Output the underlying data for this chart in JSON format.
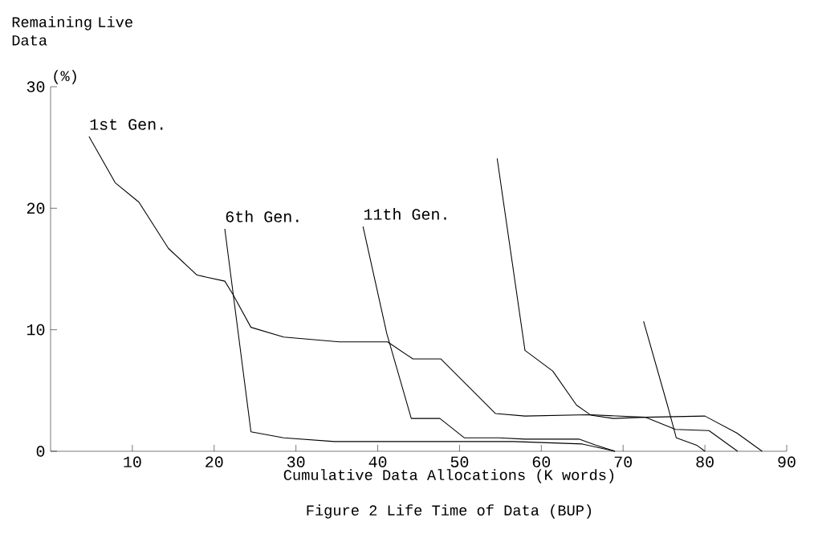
{
  "chart_data": {
    "type": "line",
    "title": "Figure 2 Life Time of Data (BUP)",
    "xlabel": "Cumulative Data Allocations (K words)",
    "ylabel": "Remaining Live Data",
    "annotations": [
      "(%)"
    ],
    "xlim": [
      0,
      90
    ],
    "ylim": [
      0,
      30
    ],
    "xticks": [
      10,
      20,
      30,
      40,
      50,
      60,
      70,
      80,
      90
    ],
    "yticks": [
      0,
      10,
      20,
      30
    ],
    "series": [
      {
        "name": "1st Gen.",
        "color": "#000000",
        "x": [
          4.7,
          7.9,
          10.8,
          14.4,
          17.9,
          21.3,
          22.3,
          24.5,
          28.5,
          35.3,
          41.2,
          44.3,
          47.7,
          54.4,
          58,
          65.7,
          68.8,
          72.7,
          80,
          83.9,
          87
        ],
        "values": [
          25.9,
          22.1,
          20.5,
          16.7,
          14.5,
          14.0,
          12.9,
          10.2,
          9.4,
          9.0,
          9.0,
          7.6,
          7.6,
          3.1,
          2.9,
          3.0,
          2.7,
          2.8,
          2.9,
          1.5,
          0
        ]
      },
      {
        "name": "6th Gen.",
        "color": "#000000",
        "x": [
          21.3,
          24.5,
          28.5,
          34.7,
          56.6,
          65,
          69
        ],
        "values": [
          18.3,
          1.6,
          1.1,
          0.8,
          0.8,
          0.6,
          0
        ]
      },
      {
        "name": "11th Gen.",
        "color": "#000000",
        "x": [
          38.2,
          41.1,
          44.1,
          47.6,
          50.6,
          54.8,
          58,
          64.6,
          66.7,
          69
        ],
        "values": [
          18.5,
          9.7,
          2.7,
          2.7,
          1.1,
          1.1,
          1.0,
          1.0,
          0.5,
          0
        ]
      },
      {
        "color": "#000000",
        "x": [
          54.6,
          58,
          61.4,
          64.3,
          66,
          72.7,
          76.4,
          80.5,
          84
        ],
        "values": [
          24.1,
          8.3,
          6.6,
          3.8,
          3.0,
          2.8,
          1.8,
          1.7,
          0
        ]
      },
      {
        "color": "#000000",
        "x": [
          72.5,
          75.5,
          76.5,
          79,
          80
        ],
        "values": [
          10.7,
          3.6,
          1.1,
          0.5,
          0
        ]
      }
    ]
  }
}
